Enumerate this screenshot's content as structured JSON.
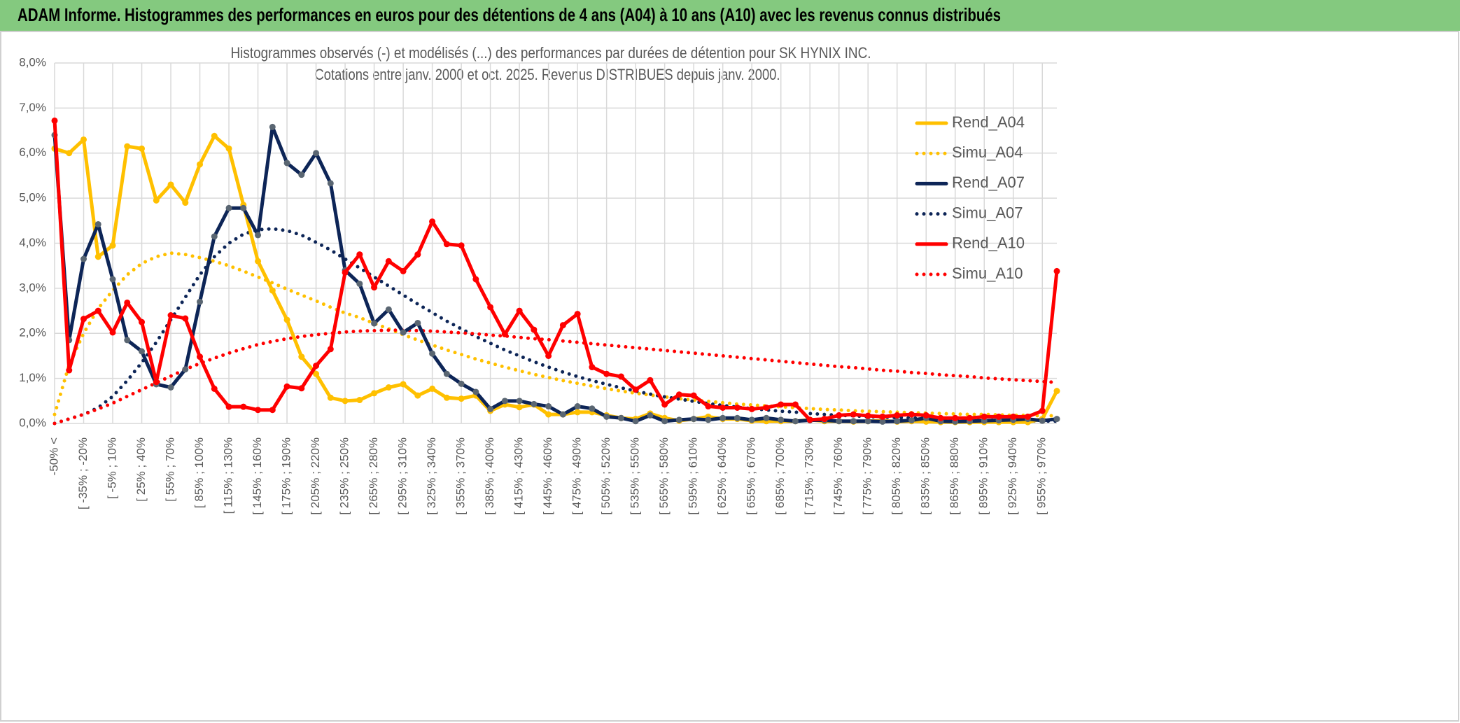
{
  "header": {
    "title": "ADAM Informe. Histogrammes des performances en euros pour des détentions de 4 ans (A04) à 10 ans (A10) avec les revenus connus distribués"
  },
  "chart_data": {
    "type": "line",
    "title": "Histogrammes observés (-) et modélisés (...) des performances par durées de détention pour SK HYNIX INC.",
    "subtitle": "Cotations entre janv. 2000 et oct. 2025. Revenus DISTRIBUES depuis janv. 2000.",
    "categories": [
      "-50% <",
      null,
      "[ -35% ; -20%",
      null,
      "[ -5% ; 10%",
      null,
      "[ 25% ; 40%",
      null,
      "[ 55% ; 70%",
      null,
      "[ 85% ; 100%",
      null,
      "[ 115% ; 130%",
      null,
      "[ 145% ; 160%",
      null,
      "[ 175% ; 190%",
      null,
      "[ 205% ; 220%",
      null,
      "[ 235% ; 250%",
      null,
      "[ 265% ; 280%",
      null,
      "[ 295% ; 310%",
      null,
      "[ 325% ; 340%",
      null,
      "[ 355% ; 370%",
      null,
      "[ 385% ; 400%",
      null,
      "[ 415% ; 430%",
      null,
      "[ 445% ; 460%",
      null,
      "[ 475% ; 490%",
      null,
      "[ 505% ; 520%",
      null,
      "[ 535% ; 550%",
      null,
      "[ 565% ; 580%",
      null,
      "[ 595% ; 610%",
      null,
      "[ 625% ; 640%",
      null,
      "[ 655% ; 670%",
      null,
      "[ 685% ; 700%",
      null,
      "[ 715% ; 730%",
      null,
      "[ 745% ; 760%",
      null,
      "[ 775% ; 790%",
      null,
      "[ 805% ; 820%",
      null,
      "[ 835% ; 850%",
      null,
      "[ 865% ; 880%",
      null,
      "[ 895% ; 910%",
      null,
      "[ 925% ; 940%",
      null,
      "[ 955% ; 970%",
      null
    ],
    "series": [
      {
        "name": "Rend_A04",
        "color": "#ffc000",
        "style": "solid",
        "marker_color": "#ffc000",
        "values": [
          6.1,
          6.0,
          6.3,
          3.7,
          3.95,
          6.15,
          6.1,
          4.95,
          5.3,
          4.9,
          5.75,
          6.38,
          6.1,
          4.85,
          3.6,
          2.95,
          2.3,
          1.48,
          1.1,
          0.57,
          0.5,
          0.52,
          0.67,
          0.8,
          0.87,
          0.62,
          0.77,
          0.57,
          0.55,
          0.62,
          0.28,
          0.42,
          0.36,
          0.42,
          0.2,
          0.2,
          0.25,
          0.25,
          0.18,
          0.12,
          0.1,
          0.22,
          0.12,
          0.06,
          0.1,
          0.15,
          0.1,
          0.1,
          0.06,
          0.05,
          0.05,
          0.05,
          0.08,
          0.05,
          0.05,
          0.04,
          0.05,
          0.06,
          0.04,
          0.05,
          0.04,
          0.03,
          0.03,
          0.03,
          0.03,
          0.03,
          0.03,
          0.03,
          0.1,
          0.72
        ]
      },
      {
        "name": "Simu_A04",
        "color": "#ffc000",
        "style": "dotted",
        "values": [
          0.2,
          1.3,
          2.0,
          2.55,
          2.95,
          3.3,
          3.55,
          3.7,
          3.78,
          3.75,
          3.68,
          3.6,
          3.5,
          3.38,
          3.25,
          3.12,
          2.98,
          2.85,
          2.72,
          2.58,
          2.45,
          2.35,
          2.22,
          2.1,
          1.97,
          1.85,
          1.74,
          1.63,
          1.53,
          1.43,
          1.34,
          1.25,
          1.17,
          1.09,
          1.02,
          0.95,
          0.89,
          0.83,
          0.77,
          0.72,
          0.67,
          0.63,
          0.59,
          0.55,
          0.52,
          0.49,
          0.46,
          0.43,
          0.41,
          0.39,
          0.37,
          0.35,
          0.33,
          0.31,
          0.3,
          0.28,
          0.27,
          0.26,
          0.25,
          0.24,
          0.23,
          0.22,
          0.21,
          0.2,
          0.2,
          0.19,
          0.18,
          0.18,
          0.17,
          0.17
        ]
      },
      {
        "name": "Rend_A07",
        "color": "#0d2557",
        "style": "solid",
        "marker_color": "#5a6672",
        "values": [
          6.4,
          1.85,
          3.65,
          4.42,
          3.2,
          1.85,
          1.6,
          0.87,
          0.8,
          1.2,
          2.7,
          4.15,
          4.78,
          4.78,
          4.18,
          6.58,
          5.78,
          5.52,
          6.0,
          5.33,
          3.4,
          3.1,
          2.22,
          2.53,
          2.02,
          2.23,
          1.55,
          1.1,
          0.88,
          0.7,
          0.32,
          0.5,
          0.5,
          0.43,
          0.38,
          0.2,
          0.38,
          0.33,
          0.15,
          0.12,
          0.05,
          0.18,
          0.05,
          0.08,
          0.1,
          0.08,
          0.12,
          0.12,
          0.08,
          0.12,
          0.08,
          0.05,
          0.07,
          0.07,
          0.05,
          0.05,
          0.05,
          0.04,
          0.05,
          0.07,
          0.12,
          0.05,
          0.04,
          0.05,
          0.06,
          0.07,
          0.08,
          0.1,
          0.06,
          0.1
        ]
      },
      {
        "name": "Simu_A07",
        "color": "#0d2557",
        "style": "dotted",
        "values": [
          0.0,
          0.1,
          0.2,
          0.35,
          0.6,
          0.95,
          1.35,
          1.8,
          2.3,
          2.8,
          3.3,
          3.7,
          4.0,
          4.2,
          4.3,
          4.32,
          4.28,
          4.18,
          4.02,
          3.85,
          3.65,
          3.45,
          3.25,
          3.05,
          2.85,
          2.65,
          2.46,
          2.27,
          2.1,
          1.93,
          1.78,
          1.63,
          1.5,
          1.37,
          1.25,
          1.14,
          1.04,
          0.95,
          0.87,
          0.79,
          0.72,
          0.65,
          0.59,
          0.54,
          0.49,
          0.44,
          0.4,
          0.36,
          0.33,
          0.3,
          0.27,
          0.25,
          0.22,
          0.2,
          0.18,
          0.17,
          0.15,
          0.14,
          0.13,
          0.12,
          0.11,
          0.1,
          0.09,
          0.08,
          0.07,
          0.07,
          0.06,
          0.06,
          0.05,
          0.05
        ]
      },
      {
        "name": "Rend_A10",
        "color": "#ff0000",
        "style": "solid",
        "marker_color": "#ff0000",
        "values": [
          6.72,
          1.18,
          2.32,
          2.5,
          2.02,
          2.68,
          2.25,
          0.92,
          2.4,
          2.33,
          1.48,
          0.77,
          0.37,
          0.37,
          0.3,
          0.3,
          0.82,
          0.78,
          1.28,
          1.65,
          3.35,
          3.75,
          3.02,
          3.6,
          3.38,
          3.75,
          4.48,
          3.98,
          3.95,
          3.2,
          2.58,
          1.98,
          2.5,
          2.08,
          1.5,
          2.18,
          2.43,
          1.25,
          1.1,
          1.04,
          0.75,
          0.96,
          0.42,
          0.64,
          0.62,
          0.38,
          0.35,
          0.35,
          0.32,
          0.35,
          0.42,
          0.42,
          0.08,
          0.1,
          0.18,
          0.2,
          0.17,
          0.15,
          0.18,
          0.2,
          0.18,
          0.12,
          0.12,
          0.12,
          0.15,
          0.15,
          0.15,
          0.15,
          0.28,
          3.38
        ]
      },
      {
        "name": "Simu_A10",
        "color": "#ff0000",
        "style": "dotted",
        "values": [
          0.0,
          0.1,
          0.2,
          0.32,
          0.45,
          0.6,
          0.75,
          0.9,
          1.05,
          1.2,
          1.33,
          1.45,
          1.56,
          1.66,
          1.75,
          1.82,
          1.88,
          1.93,
          1.97,
          2.0,
          2.03,
          2.05,
          2.06,
          2.07,
          2.07,
          2.06,
          2.05,
          2.03,
          2.01,
          1.99,
          1.96,
          1.94,
          1.91,
          1.88,
          1.86,
          1.83,
          1.8,
          1.77,
          1.74,
          1.71,
          1.68,
          1.65,
          1.62,
          1.59,
          1.56,
          1.53,
          1.5,
          1.47,
          1.44,
          1.41,
          1.38,
          1.35,
          1.32,
          1.29,
          1.26,
          1.24,
          1.21,
          1.18,
          1.16,
          1.13,
          1.11,
          1.08,
          1.06,
          1.04,
          1.01,
          0.99,
          0.97,
          0.95,
          0.93,
          0.91
        ]
      }
    ],
    "ylim": [
      0,
      8
    ],
    "yticks": [
      {
        "value": 0,
        "label": "0,0%"
      },
      {
        "value": 1,
        "label": "1,0%"
      },
      {
        "value": 2,
        "label": "2,0%"
      },
      {
        "value": 3,
        "label": "3,0%"
      },
      {
        "value": 4,
        "label": "4,0%"
      },
      {
        "value": 5,
        "label": "5,0%"
      },
      {
        "value": 6,
        "label": "6,0%"
      },
      {
        "value": 7,
        "label": "7,0%"
      },
      {
        "value": 8,
        "label": "8,0%"
      }
    ],
    "grid": true,
    "legend_position": "upper right"
  }
}
